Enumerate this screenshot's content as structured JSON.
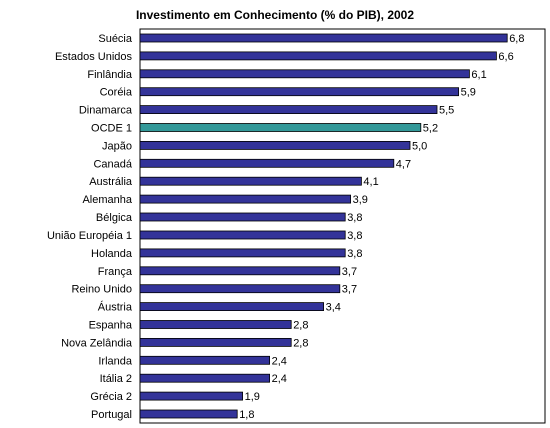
{
  "chart_data": {
    "type": "bar",
    "orientation": "horizontal",
    "title": "Investimento em Conhecimento (% do PIB), 2002",
    "xlabel": "",
    "ylabel": "",
    "xlim": [
      0,
      7.5
    ],
    "grid": false,
    "legend": "none",
    "categories": [
      "Suécia",
      "Estados Unidos",
      "Finlândia",
      "Coréia",
      "Dinamarca",
      "OCDE 1",
      "Japão",
      "Canadá",
      "Austrália",
      "Alemanha",
      "Bélgica",
      "União Européia 1",
      "Holanda",
      "França",
      "Reino Unido",
      "Áustria",
      "Espanha",
      "Nova Zelândia",
      "Irlanda",
      "Itália 2",
      "Grécia 2",
      "Portugal"
    ],
    "values": [
      6.8,
      6.6,
      6.1,
      5.9,
      5.5,
      5.2,
      5.0,
      4.7,
      4.1,
      3.9,
      3.8,
      3.8,
      3.8,
      3.7,
      3.7,
      3.4,
      2.8,
      2.8,
      2.4,
      2.4,
      1.9,
      1.8
    ],
    "value_labels": [
      "6,8",
      "6,6",
      "6,1",
      "5,9",
      "5,5",
      "5,2",
      "5,0",
      "4,7",
      "4,1",
      "3,9",
      "3,8",
      "3,8",
      "3,8",
      "3,7",
      "3,7",
      "3,4",
      "2,8",
      "2,8",
      "2,4",
      "2,4",
      "1,9",
      "1,8"
    ],
    "highlight_category": "OCDE 1",
    "colors": {
      "bar": "#333399",
      "highlight": "#339999",
      "bar_border": "#000000"
    }
  }
}
